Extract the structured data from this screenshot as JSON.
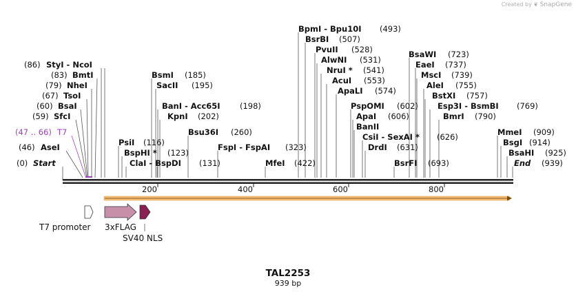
{
  "credit": {
    "prefix": "Created by",
    "brand": "SnapGene"
  },
  "plasmid": {
    "name": "TAL2253",
    "length_label": "939 bp"
  },
  "axis_ticks": [
    "200",
    "400",
    "600",
    "800"
  ],
  "colors": {
    "backbone": "#222222",
    "orf": "#f5c07a",
    "t7promoter": "#ffffff",
    "flag": "#c890a8",
    "nls": "#8a2050",
    "t7site": "#a040c0"
  },
  "sites": [
    {
      "name": "Start",
      "pos": "(0)",
      "italic": true
    },
    {
      "name": "AseI",
      "pos": "(46)"
    },
    {
      "name": "SfcI",
      "pos": "(59)"
    },
    {
      "name": "BsaI",
      "pos": "(60)"
    },
    {
      "name": "TsoI",
      "pos": "(67)"
    },
    {
      "name": "NheI",
      "pos": "(79)"
    },
    {
      "name": "BmtI",
      "pos": "(83)"
    },
    {
      "name": "StyI - NcoI",
      "pos": "(86)"
    },
    {
      "name": "PsiI",
      "pos": "(116)"
    },
    {
      "name": "BspHI *",
      "pos": "(123)"
    },
    {
      "name": "ClaI - BspDI",
      "pos": "(131)"
    },
    {
      "name": "BsmI",
      "pos": "(185)"
    },
    {
      "name": "SacII",
      "pos": "(195)"
    },
    {
      "name": "BanI - Acc65I",
      "pos": "(198)"
    },
    {
      "name": "KpnI",
      "pos": "(202)"
    },
    {
      "name": "Bsu36I",
      "pos": "(260)"
    },
    {
      "name": "FspI - FspAI",
      "pos": "(323)"
    },
    {
      "name": "MfeI",
      "pos": "(422)"
    },
    {
      "name": "BpmI - Bpu10I",
      "pos": "(493)"
    },
    {
      "name": "BsrBI",
      "pos": "(507)"
    },
    {
      "name": "PvuII",
      "pos": "(528)"
    },
    {
      "name": "AlwNI",
      "pos": "(531)"
    },
    {
      "name": "NruI *",
      "pos": "(541)"
    },
    {
      "name": "AcuI",
      "pos": "(553)"
    },
    {
      "name": "ApaLI",
      "pos": "(574)"
    },
    {
      "name": "PspOMI",
      "pos": "(602)"
    },
    {
      "name": "ApaI",
      "pos": "(606)"
    },
    {
      "name": "BanII",
      "pos": ""
    },
    {
      "name": "CsiI - SexAI *",
      "pos": "(626)"
    },
    {
      "name": "DrdI",
      "pos": "(631)"
    },
    {
      "name": "BsrFI",
      "pos": "(693)"
    },
    {
      "name": "BsaWI",
      "pos": "(723)"
    },
    {
      "name": "EaeI",
      "pos": "(737)"
    },
    {
      "name": "MscI",
      "pos": "(739)"
    },
    {
      "name": "AleI",
      "pos": "(755)"
    },
    {
      "name": "BstXI",
      "pos": "(757)"
    },
    {
      "name": "Esp3I - BsmBI",
      "pos": "(769)"
    },
    {
      "name": "BmrI",
      "pos": "(790)"
    },
    {
      "name": "MmeI",
      "pos": "(909)"
    },
    {
      "name": "BsgI",
      "pos": "(914)"
    },
    {
      "name": "BsaHI",
      "pos": "(925)"
    },
    {
      "name": "End",
      "pos": "(939)",
      "italic": true
    }
  ],
  "t7site": {
    "range": "(47 .. 66)",
    "name": "T7"
  },
  "features": [
    {
      "name": "T7 promoter"
    },
    {
      "name": "3xFLAG"
    },
    {
      "name": "SV40 NLS"
    }
  ]
}
